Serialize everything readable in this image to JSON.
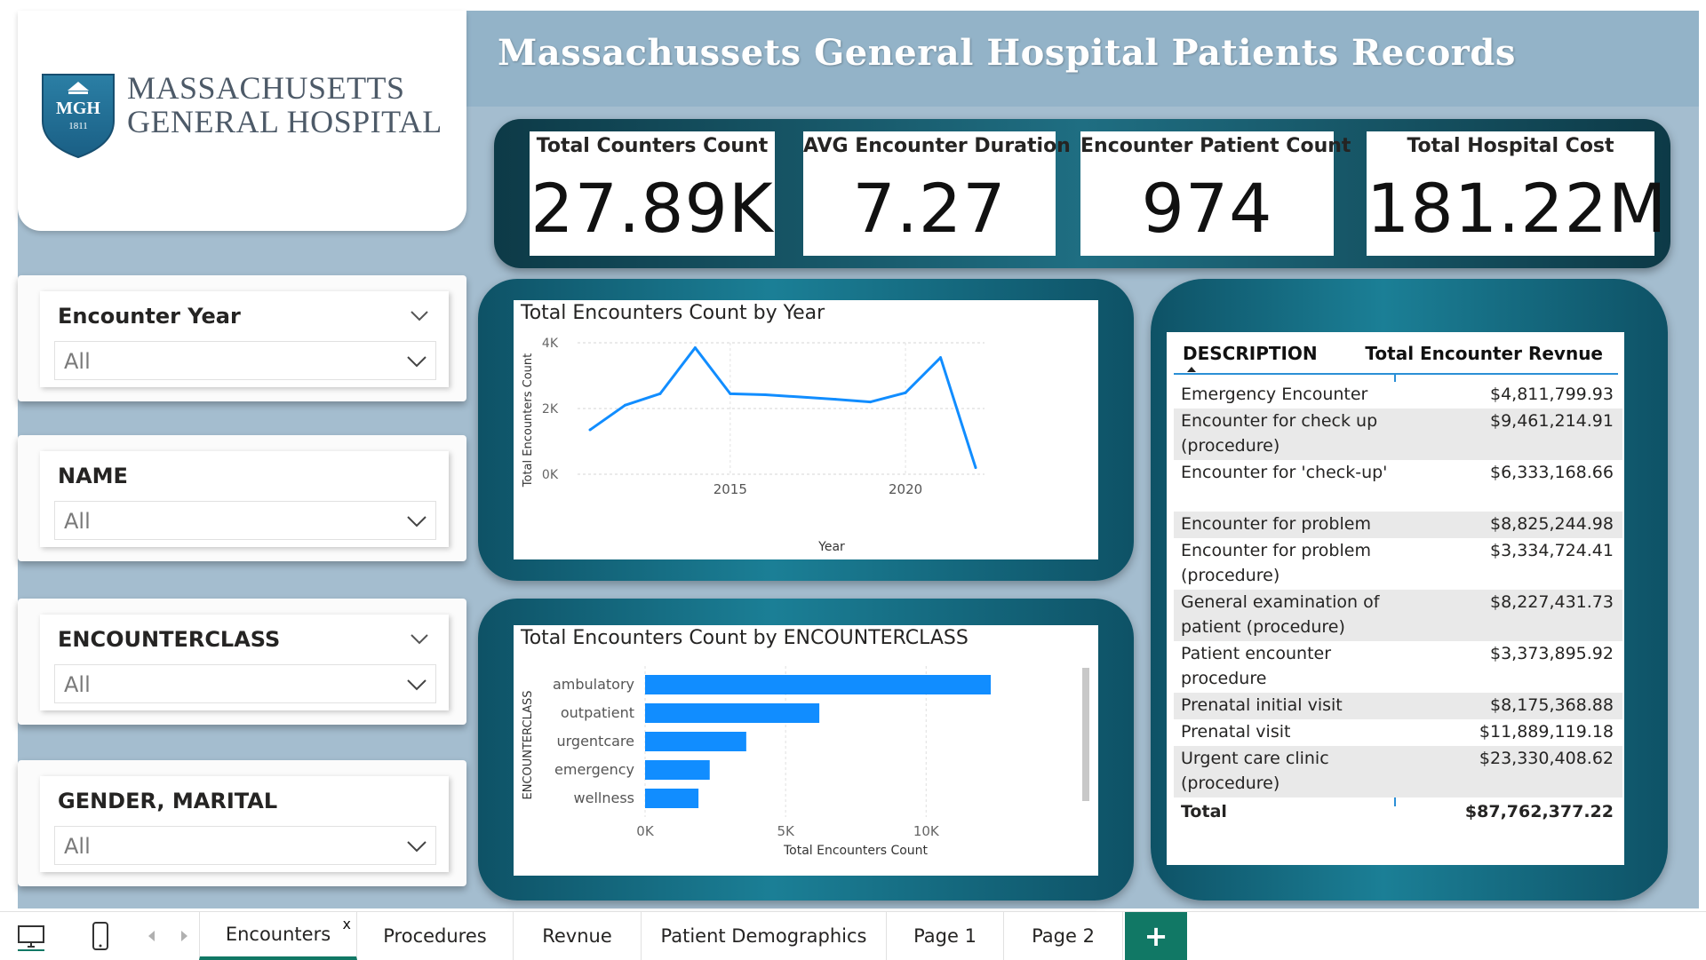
{
  "report": {
    "title": "Massachussets General Hospital Patients Records",
    "logo": {
      "line1": "MASSACHUSETTS",
      "line2": "GENERAL HOSPITAL",
      "shield_text": "MGH",
      "shield_year": "1811"
    },
    "colors": {
      "canvas": "#a4bdcf",
      "header": "#93b3c8",
      "frame_dark": "#0d3a47",
      "frame_mid": "#1b7f96",
      "accent_blue": "#118dff",
      "tab_active": "#117865"
    }
  },
  "slicers": [
    {
      "title": "Encounter Year",
      "value": "All",
      "has_title_chevron": true
    },
    {
      "title": "NAME",
      "value": "All",
      "has_title_chevron": false
    },
    {
      "title": "ENCOUNTERCLASS",
      "value": "All",
      "has_title_chevron": true
    },
    {
      "title": "GENDER, MARITAL",
      "value": "All",
      "has_title_chevron": false
    }
  ],
  "kpis": [
    {
      "label": "Total Counters Count",
      "value": "27.89K"
    },
    {
      "label": "AVG Encounter Duration",
      "value": "7.27"
    },
    {
      "label": "Encounter Patient Count",
      "value": "974"
    },
    {
      "label": "Total Hospital Cost",
      "value": "181.22M"
    }
  ],
  "chart_data": [
    {
      "type": "line",
      "title": "Total Encounters Count by Year",
      "xlabel": "Year",
      "ylabel": "Total Encounters Count",
      "x": [
        2011,
        2012,
        2013,
        2014,
        2015,
        2016,
        2017,
        2018,
        2019,
        2020,
        2021,
        2022
      ],
      "values": [
        1350,
        2100,
        2450,
        3850,
        2450,
        2420,
        2350,
        2280,
        2200,
        2480,
        3550,
        200
      ],
      "x_ticks": [
        "2015",
        "2020"
      ],
      "y_ticks": [
        "0K",
        "2K",
        "4K"
      ],
      "ylim": [
        0,
        4000
      ],
      "grid": true
    },
    {
      "type": "bar",
      "orientation": "horizontal",
      "title": "Total Encounters Count by ENCOUNTERCLASS",
      "xlabel": "Total Encounters Count",
      "ylabel": "ENCOUNTERCLASS",
      "categories": [
        "ambulatory",
        "outpatient",
        "urgentcare",
        "emergency",
        "wellness"
      ],
      "values": [
        12300,
        6200,
        3600,
        2300,
        1900
      ],
      "x_ticks": [
        "0K",
        "5K",
        "10K"
      ],
      "xlim": [
        0,
        13500
      ],
      "grid": true
    }
  ],
  "table": {
    "headers": {
      "description": "DESCRIPTION",
      "value": "Total Encounter Revnue"
    },
    "rows": [
      {
        "description": "Emergency Encounter",
        "value": "$4,811,799.93"
      },
      {
        "description": "Encounter for check up (procedure)",
        "value": "$9,461,214.91"
      },
      {
        "description": "Encounter for 'check-up'",
        "value": "$6,333,168.66"
      },
      {
        "description": "Encounter for problem",
        "value": "$8,825,244.98"
      },
      {
        "description": "Encounter for problem (procedure)",
        "value": "$3,334,724.41"
      },
      {
        "description": "General examination of patient (procedure)",
        "value": "$8,227,431.73"
      },
      {
        "description": "Patient encounter procedure",
        "value": "$3,373,895.92"
      },
      {
        "description": "Prenatal initial visit",
        "value": "$8,175,368.88"
      },
      {
        "description": "Prenatal visit",
        "value": "$11,889,119.18"
      },
      {
        "description": "Urgent care clinic (procedure)",
        "value": "$23,330,408.62"
      }
    ],
    "total": {
      "label": "Total",
      "value": "$87,762,377.22"
    }
  },
  "tabs": {
    "active_close": "x",
    "add_label": "+",
    "items": [
      "Encounters",
      "Procedures",
      "Revnue",
      "Patient Demographics",
      "Page 1",
      "Page 2"
    ]
  }
}
